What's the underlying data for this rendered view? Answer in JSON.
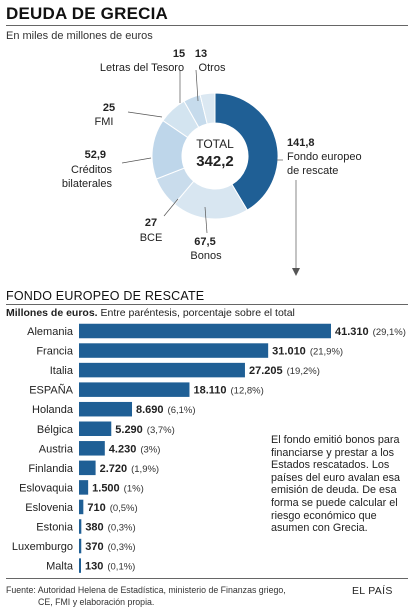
{
  "header": {
    "title": "DEUDA DE GRECIA",
    "subtitle": "En miles de millones de euros"
  },
  "chart_data": [
    {
      "type": "pie",
      "subtype": "donut",
      "center_label": "TOTAL",
      "center_value": "342,2",
      "slices": [
        {
          "name": "Fondo europeo de rescate",
          "value": 141.8,
          "value_label": "141,8",
          "color": "#1f5f95"
        },
        {
          "name": "Bonos",
          "value": 67.5,
          "value_label": "67,5",
          "color": "#d8e6f1"
        },
        {
          "name": "BCE",
          "value": 27,
          "value_label": "27",
          "color": "#c9dcec"
        },
        {
          "name": "Créditos bilaterales",
          "value": 52.9,
          "value_label": "52,9",
          "color": "#bed6ea"
        },
        {
          "name": "FMI",
          "value": 25,
          "value_label": "25",
          "color": "#d3e4f0"
        },
        {
          "name": "Letras del Tesoro",
          "value": 15,
          "value_label": "15",
          "color": "#c6dbec"
        },
        {
          "name": "Otros",
          "value": 13,
          "value_label": "13",
          "color": "#dbe8f2"
        }
      ]
    },
    {
      "type": "bar",
      "orientation": "horizontal",
      "title": "FONDO EUROPEO DE RESCATE",
      "subtitle_bold": "Millones de euros.",
      "subtitle": " Entre paréntesis,  porcentaje sobre el total",
      "bar_color": "#1f5f95",
      "xlim": [
        0,
        41310
      ],
      "categories": [
        "Alemania",
        "Francia",
        "Italia",
        "ESPAÑA",
        "Holanda",
        "Bélgica",
        "Austria",
        "Finlandia",
        "Eslovaquia",
        "Eslovenia",
        "Estonia",
        "Luxemburgo",
        "Malta"
      ],
      "values": [
        41310,
        31010,
        27205,
        18110,
        8690,
        5290,
        4230,
        2720,
        1500,
        710,
        380,
        370,
        130
      ],
      "value_labels": [
        "41.310",
        "31.010",
        "27.205",
        "18.110",
        "8.690",
        "5.290",
        "4.230",
        "2.720",
        "1.500",
        "710",
        "380",
        "370",
        "130"
      ],
      "pct_labels": [
        "(29,1%)",
        "(21,9%)",
        "(19,2%)",
        "(12,8%)",
        "(6,1%)",
        "(3,7%)",
        "(3%)",
        "(1,9%)",
        "(1%)",
        "(0,5%)",
        "(0,3%)",
        "(0,3%)",
        "(0,1%)"
      ]
    }
  ],
  "note": "El fondo emitió bonos para financiarse y prestar a los Estados rescatados. Los países del euro avalan esa emisión de deuda. De esa forma se puede calcular el riesgo económico que asumen con Grecia.",
  "footer": {
    "source_line1": "Fuente: Autoridad Helena de Estadística, ministerio de Finanzas griego,",
    "source_line2": "CE, FMI y elaboración propia.",
    "brand": "EL PAÍS"
  }
}
